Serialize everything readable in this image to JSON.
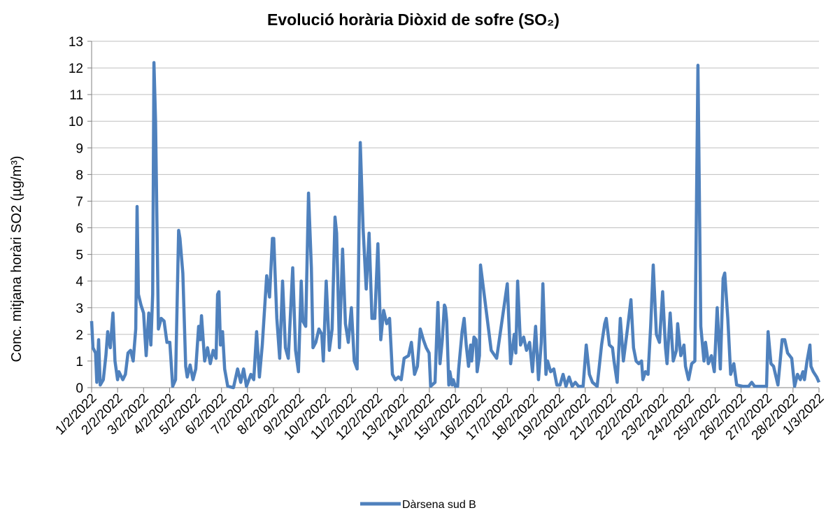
{
  "chart_data": {
    "type": "line",
    "title": "Evolució horària Diòxid de sofre (SO₂)",
    "y_label": "Conc. mitjana horàri SO2 (µg/m³)",
    "legend_position": "bottom",
    "grid": true,
    "ylim": [
      0,
      13
    ],
    "yticks": [
      0,
      1,
      2,
      3,
      4,
      5,
      6,
      7,
      8,
      9,
      10,
      11,
      12,
      13
    ],
    "xlim": [
      0,
      28
    ],
    "xticks": [
      {
        "value": 0,
        "label": "1/2/2022"
      },
      {
        "value": 1,
        "label": "2/2/2022"
      },
      {
        "value": 2,
        "label": "3/2/2022"
      },
      {
        "value": 3,
        "label": "4/2/2022"
      },
      {
        "value": 4,
        "label": "5/2/2022"
      },
      {
        "value": 5,
        "label": "6/2/2022"
      },
      {
        "value": 6,
        "label": "7/2/2022"
      },
      {
        "value": 7,
        "label": "8/2/2022"
      },
      {
        "value": 8,
        "label": "9/2/2022"
      },
      {
        "value": 9,
        "label": "10/2/2022"
      },
      {
        "value": 10,
        "label": "11/2/2022"
      },
      {
        "value": 11,
        "label": "12/2/2022"
      },
      {
        "value": 12,
        "label": "13/2/2022"
      },
      {
        "value": 13,
        "label": "14/2/2022"
      },
      {
        "value": 14,
        "label": "15/2/2022"
      },
      {
        "value": 15,
        "label": "16/2/2022"
      },
      {
        "value": 16,
        "label": "17/2/2022"
      },
      {
        "value": 17,
        "label": "18/2/2022"
      },
      {
        "value": 18,
        "label": "19/2/2022"
      },
      {
        "value": 19,
        "label": "20/2/2022"
      },
      {
        "value": 20,
        "label": "21/2/2022"
      },
      {
        "value": 21,
        "label": "22/2/2022"
      },
      {
        "value": 22,
        "label": "23/2/2022"
      },
      {
        "value": 23,
        "label": "24/2/2022"
      },
      {
        "value": 24,
        "label": "25/2/2022"
      },
      {
        "value": 25,
        "label": "26/2/2022"
      },
      {
        "value": 26,
        "label": "27/2/2022"
      },
      {
        "value": 27,
        "label": "28/2/2022"
      },
      {
        "value": 28,
        "label": "1/3/2022"
      }
    ],
    "x": [
      0,
      0.05,
      0.15,
      0.2,
      0.27,
      0.33,
      0.45,
      0.55,
      0.62,
      0.72,
      0.82,
      0.9,
      1.0,
      1.05,
      1.2,
      1.3,
      1.4,
      1.5,
      1.6,
      1.7,
      1.75,
      1.8,
      1.9,
      2.0,
      2.05,
      2.1,
      2.2,
      2.28,
      2.35,
      2.4,
      2.46,
      2.57,
      2.68,
      2.79,
      2.9,
      3.01,
      3.12,
      3.23,
      3.35,
      3.4,
      3.51,
      3.62,
      3.68,
      3.79,
      3.9,
      4.01,
      4.12,
      4.18,
      4.23,
      4.35,
      4.46,
      4.57,
      4.68,
      4.79,
      4.85,
      4.9,
      4.96,
      5.04,
      5.12,
      5.24,
      5.46,
      5.62,
      5.74,
      5.85,
      5.96,
      6.13,
      6.24,
      6.35,
      6.46,
      6.57,
      6.74,
      6.85,
      6.96,
      7.01,
      7.13,
      7.24,
      7.35,
      7.46,
      7.57,
      7.74,
      7.85,
      7.96,
      8.07,
      8.13,
      8.24,
      8.35,
      8.46,
      8.52,
      8.63,
      8.75,
      8.86,
      8.92,
      9.03,
      9.15,
      9.26,
      9.37,
      9.43,
      9.54,
      9.66,
      9.77,
      9.88,
      10.0,
      10.11,
      10.22,
      10.34,
      10.45,
      10.57,
      10.68,
      10.79,
      10.9,
      11.02,
      11.13,
      11.24,
      11.36,
      11.47,
      11.58,
      11.69,
      11.81,
      11.92,
      12.03,
      12.2,
      12.31,
      12.43,
      12.54,
      12.65,
      12.77,
      12.88,
      12.99,
      13.05,
      13.22,
      13.33,
      13.41,
      13.5,
      13.58,
      13.62,
      13.67,
      13.75,
      13.79,
      13.88,
      13.92,
      14.0,
      14.09,
      14.13,
      14.26,
      14.34,
      14.42,
      14.51,
      14.59,
      14.63,
      14.72,
      14.8,
      14.84,
      14.93,
      14.97,
      15.38,
      15.59,
      16.0,
      16.13,
      16.27,
      16.33,
      16.4,
      16.51,
      16.63,
      16.74,
      16.86,
      16.97,
      17.09,
      17.2,
      17.31,
      17.37,
      17.49,
      17.55,
      17.67,
      17.79,
      17.91,
      18.03,
      18.15,
      18.26,
      18.38,
      18.5,
      18.62,
      18.74,
      18.92,
      19.04,
      19.16,
      19.28,
      19.46,
      19.63,
      19.75,
      19.81,
      19.93,
      20.05,
      20.11,
      20.23,
      20.35,
      20.47,
      20.64,
      20.76,
      20.86,
      20.96,
      21.06,
      21.17,
      21.22,
      21.32,
      21.42,
      21.52,
      21.62,
      21.74,
      21.86,
      21.98,
      22.09,
      22.15,
      22.27,
      22.39,
      22.51,
      22.56,
      22.68,
      22.8,
      22.86,
      22.98,
      23.1,
      23.22,
      23.34,
      23.45,
      23.57,
      23.63,
      23.74,
      23.86,
      23.97,
      24.08,
      24.2,
      24.31,
      24.37,
      24.49,
      24.6,
      24.72,
      24.83,
      25.06,
      25.29,
      25.41,
      25.52,
      25.87,
      25.98,
      26.04,
      26.15,
      26.25,
      26.42,
      26.58,
      26.68,
      26.79,
      26.95,
      27.06,
      27.17,
      27.28,
      27.38,
      27.44,
      27.54,
      27.65,
      27.69,
      27.78,
      27.91,
      28.0
    ],
    "series": [
      {
        "name": "Dàrsena sud B",
        "color": "#4f81bd",
        "values": [
          2.5,
          1.5,
          1.3,
          0.2,
          1.8,
          0.1,
          0.3,
          1.2,
          2.1,
          1.5,
          2.8,
          1.0,
          0.3,
          0.6,
          0.3,
          0.5,
          1.3,
          1.4,
          1.0,
          2.2,
          6.8,
          3.5,
          3.1,
          2.8,
          2.0,
          1.2,
          2.8,
          1.6,
          3.5,
          12.2,
          10.0,
          2.2,
          2.6,
          2.5,
          1.7,
          1.7,
          0.05,
          0.3,
          5.9,
          5.6,
          4.3,
          0.8,
          0.4,
          0.85,
          0.3,
          0.7,
          2.3,
          1.8,
          2.7,
          1.0,
          1.5,
          0.9,
          1.4,
          1.1,
          3.5,
          3.6,
          1.6,
          2.1,
          0.7,
          0.05,
          0,
          0.7,
          0.2,
          0.7,
          0.05,
          0.5,
          0.3,
          2.1,
          0.4,
          1.6,
          4.2,
          3.4,
          5.6,
          5.6,
          2.6,
          1.1,
          4.0,
          1.5,
          1.1,
          4.5,
          1.4,
          0.6,
          4.0,
          2.5,
          2.3,
          7.3,
          4.5,
          1.5,
          1.7,
          2.2,
          2.0,
          1.0,
          4.0,
          1.4,
          2.2,
          6.4,
          5.8,
          1.5,
          5.2,
          2.4,
          1.7,
          3.0,
          1.0,
          0.7,
          9.2,
          6.0,
          3.7,
          5.8,
          2.6,
          2.6,
          5.4,
          1.8,
          2.9,
          2.4,
          2.6,
          0.5,
          0.3,
          0.4,
          0.3,
          1.1,
          1.2,
          1.7,
          0.5,
          0.8,
          2.2,
          1.8,
          1.5,
          1.3,
          0.05,
          0.2,
          3.2,
          0.9,
          1.8,
          3.1,
          3.0,
          2.5,
          0.1,
          0.6,
          0.1,
          0.3,
          0.05,
          0.05,
          0.7,
          2.1,
          2.6,
          1.6,
          0.8,
          1.6,
          1.0,
          1.9,
          1.8,
          0.6,
          1.2,
          4.6,
          1.4,
          1.1,
          3.9,
          0.9,
          2.0,
          1.3,
          4.0,
          1.6,
          1.9,
          1.4,
          1.7,
          0.6,
          2.3,
          0.3,
          1.7,
          3.9,
          0.5,
          1.0,
          0.6,
          0.7,
          0.1,
          0.1,
          0.5,
          0.05,
          0.4,
          0.05,
          0.2,
          0.05,
          0.05,
          1.6,
          0.5,
          0.2,
          0.05,
          1.6,
          2.4,
          2.6,
          1.6,
          1.5,
          1.0,
          0.2,
          2.6,
          1.0,
          2.3,
          3.3,
          1.5,
          1.0,
          0.9,
          1.0,
          0.3,
          0.6,
          0.5,
          2.3,
          4.6,
          2.0,
          1.7,
          3.6,
          1.5,
          0.9,
          2.8,
          1.0,
          1.4,
          2.4,
          1.2,
          1.6,
          0.8,
          0.3,
          0.9,
          1.0,
          12.1,
          2.3,
          1.0,
          1.7,
          0.9,
          1.2,
          0.6,
          3.0,
          0.7,
          4.1,
          4.3,
          2.6,
          0.5,
          0.9,
          0.1,
          0.05,
          0.05,
          0.2,
          0.05,
          0.05,
          0.05,
          2.1,
          0.9,
          0.8,
          0.1,
          1.8,
          1.8,
          1.3,
          1.1,
          0.05,
          0.5,
          0.3,
          0.6,
          0.3,
          1.0,
          1.6,
          0.8,
          0.6,
          0.4,
          0.2
        ]
      }
    ]
  }
}
